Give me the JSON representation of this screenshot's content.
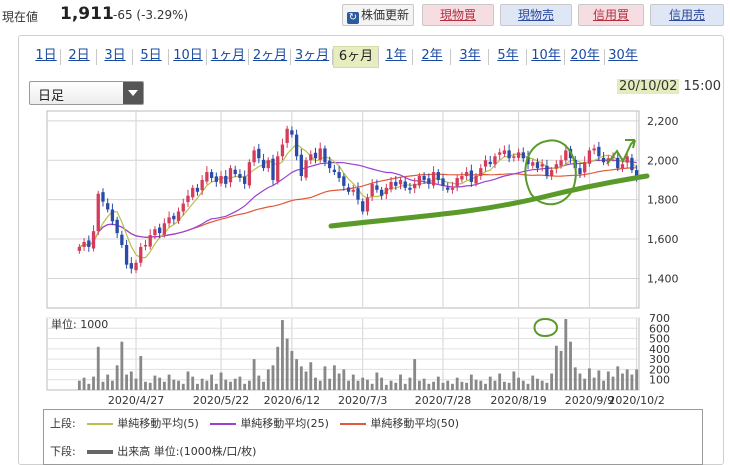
{
  "price": {
    "label": "現在値",
    "value": "1,911",
    "change": "-65 (-3.29%)"
  },
  "buttons": {
    "refresh": "株価更新",
    "genbuy": "現物買",
    "gensell": "現物売",
    "shinbuy": "信用買",
    "shinsell": "信用売"
  },
  "period_tabs": [
    "1日",
    "2日",
    "3日",
    "5日",
    "10日",
    "1ヶ月",
    "2ヶ月",
    "3ヶ月",
    "6ヶ月",
    "1年",
    "2年",
    "3年",
    "5年",
    "10年",
    "20年",
    "30年"
  ],
  "active_tab": "6ヶ月",
  "select": {
    "value": "日足"
  },
  "stamp": {
    "date": "20/10/02",
    "time": "15:00"
  },
  "legend": {
    "upper_label": "上段:",
    "lower_label": "下段:",
    "ma5": "単純移動平均(5)",
    "ma25": "単純移動平均(25)",
    "ma50": "単純移動平均(50)",
    "volume": "出来高 単位:(1000株/口/枚)"
  },
  "colors": {
    "ma5": "#b8c050",
    "ma25": "#9b40d0",
    "ma50": "#e05a3a",
    "up": "#d43c5a",
    "down": "#2a4aa8",
    "annotation": "#5a9a2a",
    "volume": "#888888"
  },
  "chart_data": [
    {
      "type": "candlestick",
      "x_ticks": [
        "2020/4/27",
        "2020/5/22",
        "2020/6/12",
        "2020/7/3",
        "2020/7/28",
        "2020/8/19",
        "2020/9/9",
        "2020/10/2"
      ],
      "y_ticks": [
        "2,200",
        "2,000",
        "1,800",
        "1,600",
        "1,400"
      ],
      "ylim": [
        1250,
        2250
      ],
      "grid": true,
      "closes": [
        1560,
        1585,
        1560,
        1640,
        1830,
        1790,
        1750,
        1690,
        1630,
        1570,
        1470,
        1450,
        1480,
        1560,
        1570,
        1620,
        1650,
        1630,
        1680,
        1710,
        1700,
        1740,
        1780,
        1820,
        1860,
        1840,
        1900,
        1940,
        1910,
        1890,
        1920,
        1880,
        1960,
        1930,
        1910,
        1880,
        1990,
        2050,
        2010,
        1960,
        2000,
        1900,
        2020,
        2080,
        2160,
        2130,
        2020,
        1920,
        2000,
        2030,
        2010,
        2060,
        1990,
        1960,
        1940,
        1910,
        1870,
        1840,
        1850,
        1800,
        1740,
        1810,
        1880,
        1850,
        1820,
        1860,
        1890,
        1870,
        1900,
        1860,
        1850,
        1880,
        1920,
        1900,
        1880,
        1940,
        1900,
        1870,
        1850,
        1860,
        1910,
        1920,
        1940,
        1890,
        1920,
        1960,
        2000,
        1980,
        2020,
        2040,
        2050,
        2010,
        2020,
        2040,
        2010,
        1980,
        1990,
        1960,
        1980,
        1920,
        1950,
        1980,
        2000,
        2050,
        2010,
        1960,
        1930,
        1990,
        2050,
        2060,
        2020,
        1990,
        2010,
        2020,
        1960,
        1980,
        2020,
        1950,
        1911
      ],
      "volume_ticks": [
        "700",
        "600",
        "500",
        "400",
        "300",
        "200",
        "100"
      ],
      "volume_unit": "単位: 1000",
      "volume_ylim": [
        0,
        700
      ],
      "volumes": [
        90,
        120,
        60,
        130,
        420,
        80,
        150,
        90,
        240,
        470,
        150,
        180,
        110,
        330,
        80,
        70,
        140,
        120,
        80,
        150,
        100,
        90,
        60,
        180,
        130,
        60,
        110,
        90,
        150,
        60,
        170,
        100,
        80,
        110,
        130,
        60,
        90,
        300,
        140,
        80,
        200,
        240,
        420,
        680,
        500,
        380,
        300,
        230,
        180,
        270,
        120,
        90,
        230,
        110,
        240,
        160,
        200,
        90,
        150,
        90,
        120,
        100,
        60,
        170,
        120,
        50,
        90,
        70,
        150,
        60,
        120,
        300,
        90,
        110,
        60,
        80,
        130,
        70,
        90,
        60,
        120,
        80,
        70,
        150,
        100,
        90,
        60,
        130,
        90,
        160,
        80,
        70,
        180,
        120,
        90,
        60,
        140,
        110,
        90,
        70,
        160,
        430,
        380,
        690,
        470,
        220,
        160,
        110,
        210,
        120,
        190,
        90,
        180,
        130,
        230,
        160,
        200,
        150,
        200
      ]
    }
  ]
}
